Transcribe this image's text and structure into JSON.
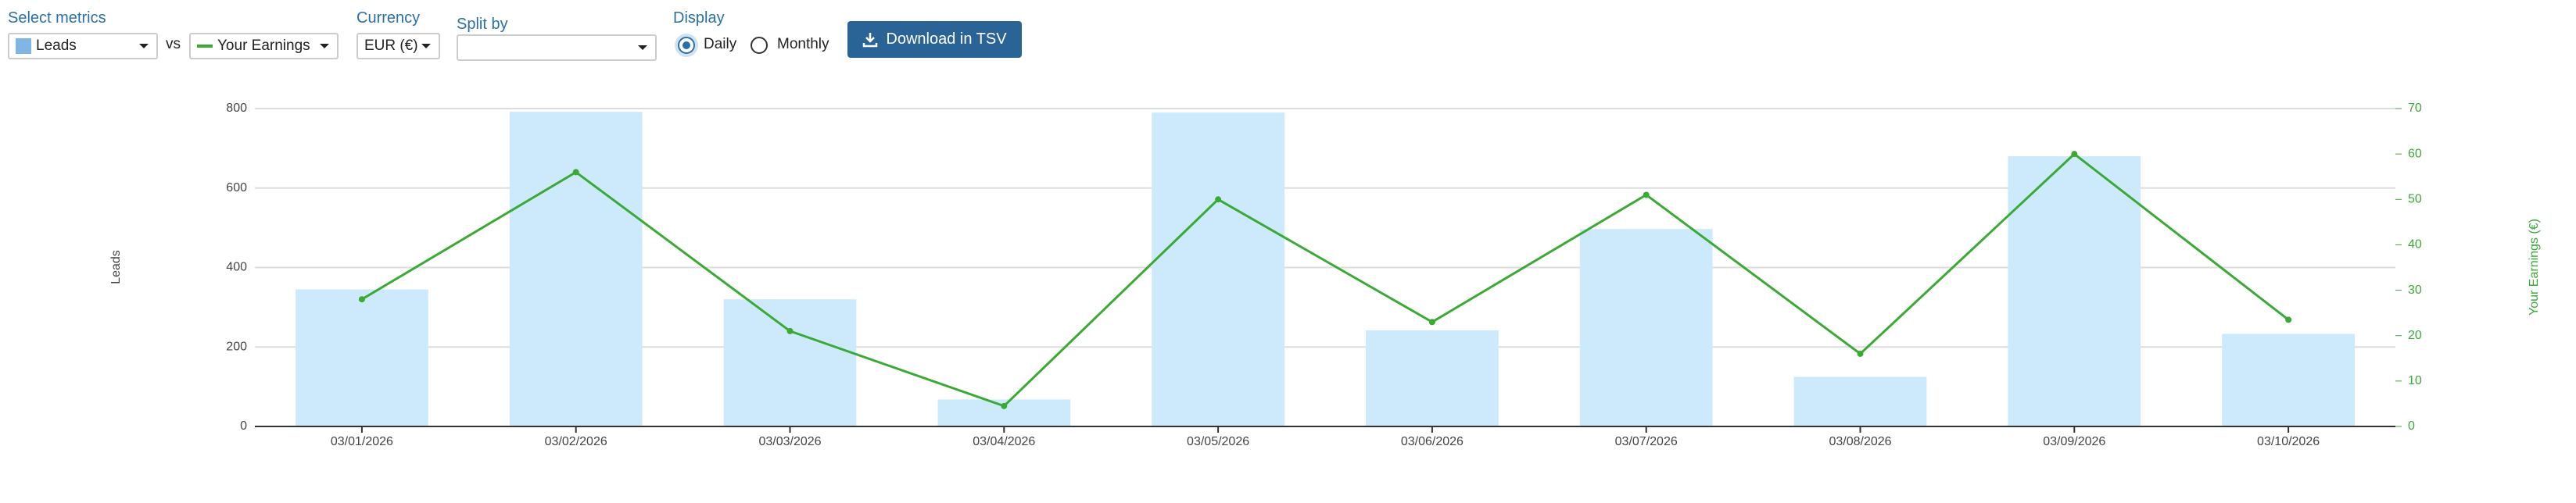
{
  "controls": {
    "select_metrics_label": "Select metrics",
    "vs": "vs",
    "currency_label": "Currency",
    "currency": "EUR (€)",
    "split_by_label": "Split by",
    "display_label": "Display",
    "display_options": [
      "Daily",
      "Monthly"
    ],
    "button": "Download in TSV"
  },
  "chart_data": {
    "type": "bar",
    "categories": [
      "03/01/2026",
      "03/02/2026",
      "03/03/2026",
      "03/04/2026",
      "03/05/2026",
      "03/06/2026",
      "03/07/2026",
      "03/08/2026",
      "03/09/2026",
      "03/10/2026"
    ],
    "series": [
      {
        "name": "Leads",
        "color": "#cdeafc",
        "values": [
          345,
          792,
          320,
          68,
          790,
          242,
          497,
          125,
          680,
          233
        ]
      },
      {
        "name": "Your Earnings",
        "color": "#3aaa35",
        "type": "line",
        "axis": "y2",
        "values": [
          28,
          56,
          21,
          4.5,
          50,
          23,
          51,
          16,
          60,
          23.5
        ]
      }
    ],
    "y_label": "Leads",
    "y2_label": "Your Earnings (€)",
    "ylim": [
      0,
      800
    ],
    "yticks": [
      0,
      200,
      400,
      600,
      800
    ],
    "y2lim": [
      0,
      70
    ],
    "y2ticks": [
      0,
      10,
      20,
      30,
      40,
      50,
      60,
      70
    ],
    "grid": true
  }
}
